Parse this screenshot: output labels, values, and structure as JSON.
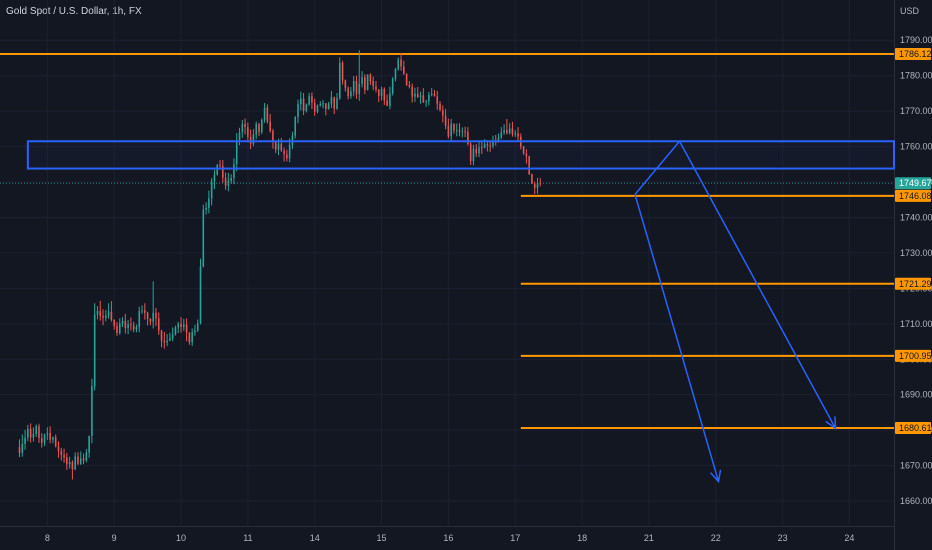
{
  "header": {
    "symbol_title": "Gold Spot / U.S. Dollar, 1h, FX"
  },
  "colors": {
    "background": "#131722",
    "grid": "#1c2030",
    "text": "#b2b5be",
    "up": "#26a69a",
    "down": "#ef5350",
    "orange": "#ff9800",
    "blue": "#2962ff",
    "current": "#26a69a"
  },
  "chart_data": {
    "type": "candlestick",
    "title": "Gold Spot / U.S. Dollar, 1h, FX",
    "currency_label": "USD",
    "ylim": [
      1655,
      1795
    ],
    "y_ticks": [
      "1790.00",
      "1780.00",
      "1770.00",
      "1760.00",
      "1750.00",
      "1740.00",
      "1730.00",
      "1720.00",
      "1710.00",
      "1700.00",
      "1690.00",
      "1680.00",
      "1670.00",
      "1660.00"
    ],
    "x_ticks": [
      {
        "label": "8",
        "t": 10
      },
      {
        "label": "9",
        "t": 34
      },
      {
        "label": "10",
        "t": 58
      },
      {
        "label": "11",
        "t": 82
      },
      {
        "label": "14",
        "t": 106
      },
      {
        "label": "15",
        "t": 130
      },
      {
        "label": "16",
        "t": 154
      },
      {
        "label": "17",
        "t": 178
      },
      {
        "label": "18",
        "t": 202
      },
      {
        "label": "21",
        "t": 226
      },
      {
        "label": "22",
        "t": 250
      },
      {
        "label": "23",
        "t": 274
      },
      {
        "label": "24",
        "t": 298
      }
    ],
    "t_range": [
      -7,
      314
    ],
    "current_price": {
      "value": 1749.67,
      "label": "1749.67"
    },
    "price_levels": [
      {
        "value": 1786.12,
        "label": "1786.12",
        "t_start": -7
      },
      {
        "value": 1746.08,
        "label": "1746.08",
        "t_start": 180
      },
      {
        "value": 1721.29,
        "label": "1721.29",
        "t_start": 180
      },
      {
        "value": 1700.95,
        "label": "1700.95",
        "t_start": 180
      },
      {
        "value": 1680.61,
        "label": "1680.61",
        "t_start": 180
      }
    ],
    "zone": {
      "t_start": 3,
      "t_end": 314,
      "price_top": 1761.5,
      "price_bottom": 1753.8
    },
    "projection": {
      "points": [
        {
          "t": 221,
          "price": 1746.5
        },
        {
          "t": 237,
          "price": 1761.5
        },
        {
          "t": 267,
          "price": 1680.5
        },
        {
          "t": 293,
          "price": 1680.5
        }
      ]
    },
    "candles": [
      [
        1675.2,
        1673.6,
        1677.4,
        1672.4
      ],
      [
        1673.6,
        1676.1,
        1678.8,
        1672.5
      ],
      [
        1676.1,
        1677.9,
        1680.1,
        1674.5
      ],
      [
        1677.9,
        1680.4,
        1681.5,
        1676.9
      ],
      [
        1680.4,
        1677.9,
        1681.9,
        1676.5
      ],
      [
        1677.9,
        1678.9,
        1680.8,
        1676.8
      ],
      [
        1678.9,
        1681.1,
        1681.6,
        1678.1
      ],
      [
        1681.1,
        1677.8,
        1681.8,
        1676.4
      ],
      [
        1677.8,
        1676.4,
        1679.2,
        1675.1
      ],
      [
        1676.4,
        1678.8,
        1679.0,
        1675.5
      ],
      [
        1678.8,
        1679.2,
        1680.8,
        1677.2
      ],
      [
        1679.2,
        1677.3,
        1681.1,
        1676.3
      ],
      [
        1677.3,
        1678.0,
        1678.2,
        1676.3
      ],
      [
        1678.0,
        1675.5,
        1678.8,
        1675.1
      ],
      [
        1675.5,
        1674.1,
        1676.9,
        1672.2
      ],
      [
        1674.1,
        1673.0,
        1675.0,
        1671.4
      ],
      [
        1673.0,
        1672.3,
        1674.8,
        1670.8
      ],
      [
        1672.3,
        1670.4,
        1673.6,
        1668.8
      ],
      [
        1670.4,
        1671.0,
        1672.5,
        1669.2
      ],
      [
        1671.0,
        1669.0,
        1671.5,
        1666.1
      ],
      [
        1669.0,
        1672.6,
        1673.7,
        1668.7
      ],
      [
        1672.6,
        1670.5,
        1673.8,
        1670.1
      ],
      [
        1670.5,
        1672.0,
        1674.0,
        1670.2
      ],
      [
        1672.0,
        1671.5,
        1673.4,
        1670.4
      ],
      [
        1671.5,
        1673.7,
        1674.7,
        1670.9
      ],
      [
        1673.7,
        1678.4,
        1678.4,
        1672.2
      ],
      [
        1678.4,
        1692.4,
        1694.5,
        1676.3
      ],
      [
        1692.4,
        1712.6,
        1715.8,
        1691.2
      ],
      [
        1712.6,
        1713.6,
        1715.0,
        1711.3
      ],
      [
        1713.6,
        1712.2,
        1716.5,
        1710.9
      ],
      [
        1712.2,
        1711.7,
        1714.1,
        1709.6
      ],
      [
        1711.7,
        1712.3,
        1713.9,
        1710.7
      ],
      [
        1712.3,
        1713.4,
        1715.8,
        1711.4
      ],
      [
        1713.4,
        1711.1,
        1716.4,
        1710.6
      ],
      [
        1711.1,
        1709.4,
        1711.3,
        1708.3
      ],
      [
        1709.4,
        1707.4,
        1710.5,
        1706.6
      ],
      [
        1707.4,
        1710.1,
        1711.5,
        1706.9
      ],
      [
        1710.1,
        1710.8,
        1711.9,
        1709.1
      ],
      [
        1710.8,
        1708.8,
        1712.8,
        1707.3
      ],
      [
        1708.8,
        1709.9,
        1711.1,
        1707.1
      ],
      [
        1709.9,
        1709.6,
        1711.8,
        1708.1
      ],
      [
        1709.6,
        1708.4,
        1710.6,
        1707.6
      ],
      [
        1708.4,
        1709.1,
        1709.8,
        1707.6
      ],
      [
        1709.1,
        1713.6,
        1714.8,
        1707.6
      ],
      [
        1713.6,
        1713.8,
        1715.2,
        1712.8
      ],
      [
        1713.8,
        1713.1,
        1715.8,
        1711.2
      ],
      [
        1713.1,
        1711.4,
        1713.4,
        1709.5
      ],
      [
        1711.4,
        1710.6,
        1711.6,
        1709.6
      ],
      [
        1710.6,
        1713.1,
        1722.0,
        1708.7
      ],
      [
        1713.1,
        1711.5,
        1714.5,
        1709.4
      ],
      [
        1711.5,
        1708.1,
        1713.2,
        1706.9
      ],
      [
        1708.1,
        1705.2,
        1708.3,
        1703.4
      ],
      [
        1705.2,
        1704.8,
        1707.7,
        1703.0
      ],
      [
        1704.8,
        1705.2,
        1707.1,
        1703.7
      ],
      [
        1705.2,
        1705.9,
        1707.5,
        1705.2
      ],
      [
        1705.9,
        1707.0,
        1709.0,
        1705.1
      ],
      [
        1707.0,
        1709.0,
        1709.5,
        1706.7
      ],
      [
        1709.0,
        1710.0,
        1710.6,
        1707.4
      ],
      [
        1710.0,
        1709.1,
        1711.9,
        1707.5
      ],
      [
        1709.1,
        1709.8,
        1711.4,
        1708.0
      ],
      [
        1709.8,
        1707.5,
        1711.5,
        1705.1
      ],
      [
        1707.5,
        1704.8,
        1707.7,
        1704.1
      ],
      [
        1704.8,
        1707.6,
        1708.7,
        1703.7
      ],
      [
        1707.6,
        1708.1,
        1709.7,
        1706.6
      ],
      [
        1708.1,
        1710.2,
        1711.2,
        1707.7
      ],
      [
        1710.2,
        1726.2,
        1728.4,
        1709.8
      ],
      [
        1726.2,
        1742.2,
        1743.6,
        1725.9
      ],
      [
        1742.2,
        1742.7,
        1744.3,
        1740.8
      ],
      [
        1742.7,
        1745.4,
        1747.6,
        1741.2
      ],
      [
        1745.4,
        1750.3,
        1751.1,
        1743.4
      ],
      [
        1750.3,
        1752.1,
        1753.4,
        1748.0
      ],
      [
        1752.1,
        1754.8,
        1755.1,
        1751.8
      ],
      [
        1754.8,
        1754.5,
        1756.2,
        1753.8
      ],
      [
        1754.5,
        1751.2,
        1756.2,
        1749.8
      ],
      [
        1751.2,
        1749.0,
        1752.7,
        1747.8
      ],
      [
        1749.0,
        1750.4,
        1752.6,
        1747.4
      ],
      [
        1750.4,
        1751.1,
        1752.2,
        1749.5
      ],
      [
        1751.1,
        1755.1,
        1756.7,
        1749.4
      ],
      [
        1755.1,
        1761.9,
        1763.8,
        1753.0
      ],
      [
        1761.9,
        1764.0,
        1765.3,
        1760.4
      ],
      [
        1764.0,
        1766.4,
        1767.5,
        1762.5
      ],
      [
        1766.4,
        1765.5,
        1767.9,
        1763.4
      ],
      [
        1765.5,
        1762.7,
        1766.8,
        1761.2
      ],
      [
        1762.7,
        1760.8,
        1764.8,
        1759.3
      ],
      [
        1760.8,
        1763.4,
        1764.9,
        1760.1
      ],
      [
        1763.4,
        1766.4,
        1767.1,
        1762.1
      ],
      [
        1766.4,
        1764.1,
        1766.7,
        1763.0
      ],
      [
        1764.1,
        1767.5,
        1768.0,
        1763.5
      ],
      [
        1767.5,
        1771.0,
        1772.3,
        1766.7
      ],
      [
        1771.0,
        1767.1,
        1771.9,
        1766.5
      ],
      [
        1767.1,
        1764.4,
        1769.2,
        1763.9
      ],
      [
        1764.4,
        1761.3,
        1765.0,
        1759.4
      ],
      [
        1761.3,
        1759.1,
        1761.5,
        1758.2
      ],
      [
        1759.1,
        1760.8,
        1762.2,
        1757.6
      ],
      [
        1760.8,
        1758.9,
        1762.4,
        1758.5
      ],
      [
        1758.9,
        1757.8,
        1759.7,
        1755.8
      ],
      [
        1757.8,
        1756.7,
        1759.1,
        1755.8
      ],
      [
        1756.7,
        1760.5,
        1762.3,
        1755.6
      ],
      [
        1760.5,
        1763.1,
        1764.2,
        1759.3
      ],
      [
        1763.1,
        1768.3,
        1768.6,
        1762.3
      ],
      [
        1768.3,
        1772.0,
        1773.2,
        1766.6
      ],
      [
        1772.0,
        1773.5,
        1775.5,
        1770.2
      ],
      [
        1773.5,
        1770.1,
        1775.1,
        1768.9
      ],
      [
        1770.1,
        1771.9,
        1772.2,
        1769.6
      ],
      [
        1771.9,
        1774.2,
        1775.1,
        1771.5
      ],
      [
        1774.2,
        1772.4,
        1775.3,
        1770.6
      ],
      [
        1772.4,
        1769.8,
        1773.5,
        1768.7
      ],
      [
        1769.8,
        1771.6,
        1771.9,
        1769.4
      ],
      [
        1771.6,
        1772.0,
        1772.8,
        1771.3
      ],
      [
        1772.0,
        1772.2,
        1773.1,
        1770.8
      ],
      [
        1772.2,
        1770.6,
        1772.3,
        1768.8
      ],
      [
        1770.6,
        1772.1,
        1772.6,
        1770.4
      ],
      [
        1772.1,
        1773.9,
        1775.7,
        1770.9
      ],
      [
        1773.9,
        1770.7,
        1774.1,
        1769.2
      ],
      [
        1770.7,
        1773.6,
        1775.1,
        1770.4
      ],
      [
        1773.6,
        1783.6,
        1785.2,
        1773.2
      ],
      [
        1783.6,
        1778.7,
        1784.2,
        1777.5
      ],
      [
        1778.7,
        1776.4,
        1778.9,
        1775.5
      ],
      [
        1776.4,
        1774.2,
        1777.0,
        1773.3
      ],
      [
        1774.2,
        1775.6,
        1776.8,
        1773.5
      ],
      [
        1775.6,
        1778.5,
        1779.9,
        1774.2
      ],
      [
        1778.5,
        1774.8,
        1780.0,
        1773.5
      ],
      [
        1774.8,
        1777.7,
        1787.2,
        1772.9
      ],
      [
        1777.7,
        1779.6,
        1781.3,
        1776.7
      ],
      [
        1779.6,
        1776.0,
        1780.4,
        1774.8
      ],
      [
        1776.0,
        1780.3,
        1780.4,
        1775.8
      ],
      [
        1780.3,
        1778.5,
        1780.7,
        1777.4
      ],
      [
        1778.5,
        1777.0,
        1779.8,
        1775.9
      ],
      [
        1777.0,
        1776.1,
        1778.5,
        1775.3
      ],
      [
        1776.1,
        1774.3,
        1776.2,
        1772.6
      ],
      [
        1774.3,
        1776.3,
        1776.9,
        1773.0
      ],
      [
        1776.3,
        1773.0,
        1776.7,
        1771.7
      ],
      [
        1773.0,
        1771.5,
        1774.7,
        1771.4
      ],
      [
        1771.5,
        1775.0,
        1776.9,
        1770.5
      ],
      [
        1775.0,
        1779.1,
        1779.6,
        1774.4
      ],
      [
        1779.1,
        1781.8,
        1782.2,
        1778.4
      ],
      [
        1781.8,
        1784.6,
        1785.2,
        1781.4
      ],
      [
        1784.6,
        1782.6,
        1786.4,
        1781.4
      ],
      [
        1782.6,
        1780.6,
        1784.2,
        1780.2
      ],
      [
        1780.6,
        1777.4,
        1780.6,
        1777.1
      ],
      [
        1777.4,
        1776.9,
        1778.5,
        1776.4
      ],
      [
        1776.9,
        1774.1,
        1777.8,
        1772.4
      ],
      [
        1774.1,
        1774.9,
        1776.6,
        1772.6
      ],
      [
        1774.9,
        1774.0,
        1776.8,
        1773.7
      ],
      [
        1774.0,
        1774.4,
        1775.5,
        1772.1
      ],
      [
        1774.4,
        1772.5,
        1776.5,
        1772.3
      ],
      [
        1772.5,
        1772.8,
        1773.2,
        1771.2
      ],
      [
        1772.8,
        1774.6,
        1775.4,
        1771.6
      ],
      [
        1774.6,
        1774.9,
        1776.5,
        1774.2
      ],
      [
        1774.9,
        1774.2,
        1776.0,
        1774.1
      ],
      [
        1774.2,
        1772.1,
        1775.7,
        1770.4
      ],
      [
        1772.1,
        1770.3,
        1772.8,
        1769.9
      ],
      [
        1770.3,
        1768.7,
        1771.6,
        1766.8
      ],
      [
        1768.7,
        1765.9,
        1770.6,
        1764.9
      ],
      [
        1765.9,
        1762.9,
        1767.9,
        1762.3
      ],
      [
        1762.9,
        1766.5,
        1767.8,
        1761.4
      ],
      [
        1766.5,
        1764.5,
        1766.5,
        1763.6
      ],
      [
        1764.5,
        1764.6,
        1766.5,
        1762.9
      ],
      [
        1764.6,
        1764.2,
        1766.6,
        1762.9
      ],
      [
        1764.2,
        1764.3,
        1765.4,
        1762.6
      ],
      [
        1764.3,
        1764.1,
        1765.6,
        1762.7
      ],
      [
        1764.1,
        1760.8,
        1765.5,
        1760.3
      ],
      [
        1760.8,
        1755.9,
        1761.7,
        1754.8
      ],
      [
        1755.9,
        1759.4,
        1760.5,
        1754.7
      ],
      [
        1759.4,
        1758.1,
        1760.7,
        1757.1
      ],
      [
        1758.1,
        1759.8,
        1761.7,
        1757.0
      ],
      [
        1759.8,
        1759.7,
        1761.4,
        1757.9
      ],
      [
        1759.7,
        1760.7,
        1762.1,
        1759.5
      ],
      [
        1760.7,
        1760.3,
        1761.8,
        1758.6
      ],
      [
        1760.3,
        1760.2,
        1761.7,
        1758.5
      ],
      [
        1760.2,
        1761.4,
        1763.1,
        1759.5
      ],
      [
        1761.4,
        1761.2,
        1763.3,
        1760.3
      ],
      [
        1761.2,
        1762.6,
        1763.7,
        1761.1
      ],
      [
        1762.6,
        1764.0,
        1765.5,
        1762.1
      ],
      [
        1764.0,
        1764.7,
        1766.3,
        1763.3
      ],
      [
        1764.7,
        1763.8,
        1767.8,
        1763.4
      ],
      [
        1763.8,
        1765.1,
        1766.6,
        1763.4
      ],
      [
        1765.1,
        1763.5,
        1767.0,
        1762.8
      ],
      [
        1763.5,
        1763.7,
        1764.6,
        1762.7
      ],
      [
        1763.7,
        1762.8,
        1765.5,
        1761.6
      ],
      [
        1762.8,
        1760.0,
        1763.7,
        1759.2
      ],
      [
        1760.0,
        1758.0,
        1760.2,
        1757.7
      ],
      [
        1758.0,
        1757.3,
        1759.2,
        1755.2
      ],
      [
        1757.3,
        1752.2,
        1757.4,
        1752.0
      ],
      [
        1752.2,
        1749.5,
        1752.4,
        1749.5
      ],
      [
        1749.5,
        1748.3,
        1750.1,
        1746.6
      ],
      [
        1748.3,
        1749.7,
        1751.2,
        1746.7
      ],
      [
        1749.7,
        1749.67,
        1751.1,
        1748.8
      ]
    ]
  }
}
